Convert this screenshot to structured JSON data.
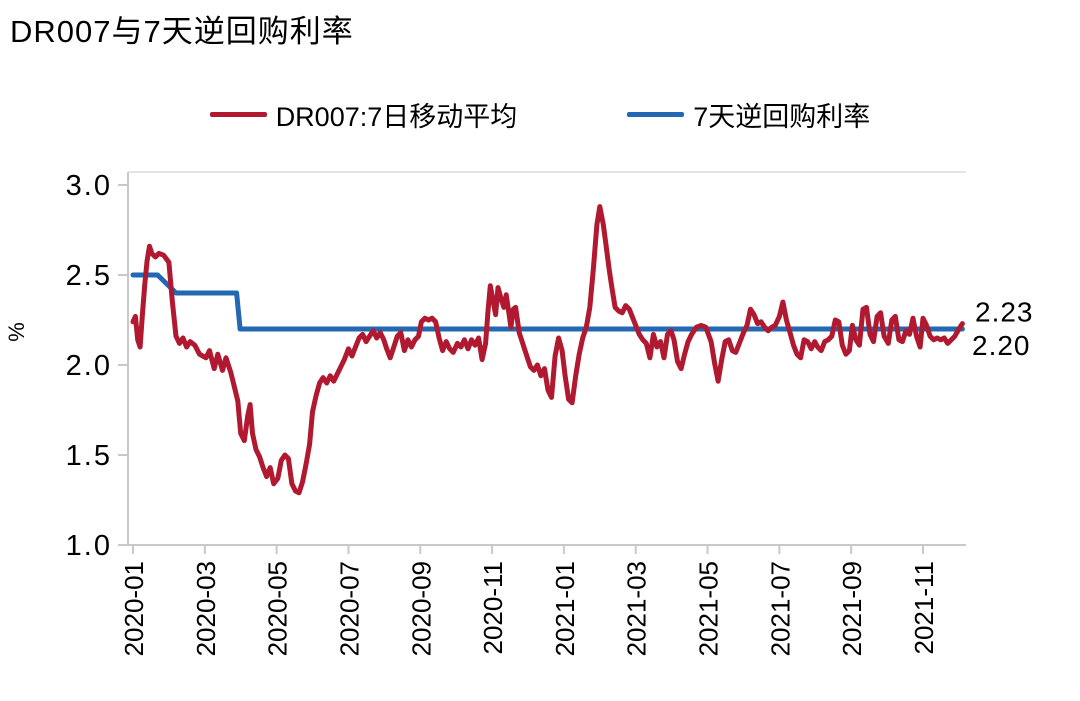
{
  "header": {
    "title": "DR007与7天逆回购利率"
  },
  "legend": {
    "items": [
      {
        "label": "DR007:7日移动平均",
        "color": "#b0192f"
      },
      {
        "label": "7天逆回购利率",
        "color": "#2268b2"
      }
    ]
  },
  "colors": {
    "red": "#b0192f",
    "blue": "#2268b2",
    "axis": "#c9c9c9",
    "text": "#000000"
  },
  "chart_data": {
    "type": "line",
    "title": "DR007与7天逆回购利率",
    "xlabel": "",
    "ylabel": "%",
    "ylim": [
      1.0,
      3.0
    ],
    "yticks": [
      "3.0",
      "2.5",
      "2.0",
      "1.5",
      "1.0"
    ],
    "xticks": [
      "2020-01",
      "2020-03",
      "2020-05",
      "2020-07",
      "2020-09",
      "2020-11",
      "2021-01",
      "2021-03",
      "2021-05",
      "2021-07",
      "2021-09",
      "2021-11"
    ],
    "grid": false,
    "legend_position": "top",
    "end_labels": [
      {
        "text": "2.23",
        "series": "DR007:7日移动平均",
        "color": "#000000"
      },
      {
        "text": "2.20",
        "series": "7天逆回购利率",
        "color": "#000000"
      }
    ],
    "series": [
      {
        "name": "7天逆回购利率",
        "color": "#2268b2",
        "points": [
          [
            "2020-01-01",
            2.5
          ],
          [
            "2020-01-22",
            2.5
          ],
          [
            "2020-02-07",
            2.4
          ],
          [
            "2020-03-28",
            2.4
          ],
          [
            "2020-03-31",
            2.2
          ],
          [
            "2021-12-04",
            2.2
          ]
        ]
      },
      {
        "name": "DR007:7日移动平均",
        "color": "#b0192f",
        "points": [
          [
            "2020-01-01",
            2.24
          ],
          [
            "2020-01-03",
            2.27
          ],
          [
            "2020-01-05",
            2.14
          ],
          [
            "2020-01-07",
            2.1
          ],
          [
            "2020-01-09",
            2.28
          ],
          [
            "2020-01-11",
            2.45
          ],
          [
            "2020-01-13",
            2.58
          ],
          [
            "2020-01-15",
            2.66
          ],
          [
            "2020-01-17",
            2.62
          ],
          [
            "2020-01-20",
            2.6
          ],
          [
            "2020-01-23",
            2.62
          ],
          [
            "2020-01-27",
            2.61
          ],
          [
            "2020-02-01",
            2.57
          ],
          [
            "2020-02-04",
            2.35
          ],
          [
            "2020-02-07",
            2.16
          ],
          [
            "2020-02-10",
            2.12
          ],
          [
            "2020-02-13",
            2.15
          ],
          [
            "2020-02-16",
            2.1
          ],
          [
            "2020-02-19",
            2.13
          ],
          [
            "2020-02-23",
            2.11
          ],
          [
            "2020-02-27",
            2.06
          ],
          [
            "2020-03-02",
            2.04
          ],
          [
            "2020-03-05",
            2.08
          ],
          [
            "2020-03-09",
            1.98
          ],
          [
            "2020-03-12",
            2.06
          ],
          [
            "2020-03-16",
            1.97
          ],
          [
            "2020-03-19",
            2.04
          ],
          [
            "2020-03-23",
            1.96
          ],
          [
            "2020-03-26",
            1.88
          ],
          [
            "2020-03-29",
            1.8
          ],
          [
            "2020-04-01",
            1.62
          ],
          [
            "2020-04-04",
            1.58
          ],
          [
            "2020-04-07",
            1.72
          ],
          [
            "2020-04-09",
            1.78
          ],
          [
            "2020-04-11",
            1.62
          ],
          [
            "2020-04-14",
            1.53
          ],
          [
            "2020-04-17",
            1.49
          ],
          [
            "2020-04-20",
            1.43
          ],
          [
            "2020-04-23",
            1.38
          ],
          [
            "2020-04-26",
            1.43
          ],
          [
            "2020-04-29",
            1.34
          ],
          [
            "2020-05-02",
            1.37
          ],
          [
            "2020-05-05",
            1.47
          ],
          [
            "2020-05-08",
            1.5
          ],
          [
            "2020-05-11",
            1.48
          ],
          [
            "2020-05-14",
            1.34
          ],
          [
            "2020-05-17",
            1.3
          ],
          [
            "2020-05-20",
            1.29
          ],
          [
            "2020-05-23",
            1.35
          ],
          [
            "2020-05-26",
            1.45
          ],
          [
            "2020-05-29",
            1.56
          ],
          [
            "2020-06-01",
            1.74
          ],
          [
            "2020-06-04",
            1.83
          ],
          [
            "2020-06-07",
            1.9
          ],
          [
            "2020-06-10",
            1.93
          ],
          [
            "2020-06-13",
            1.9
          ],
          [
            "2020-06-16",
            1.94
          ],
          [
            "2020-06-19",
            1.91
          ],
          [
            "2020-06-22",
            1.95
          ],
          [
            "2020-06-25",
            1.99
          ],
          [
            "2020-06-28",
            2.03
          ],
          [
            "2020-07-01",
            2.09
          ],
          [
            "2020-07-04",
            2.05
          ],
          [
            "2020-07-07",
            2.1
          ],
          [
            "2020-07-10",
            2.15
          ],
          [
            "2020-07-13",
            2.17
          ],
          [
            "2020-07-16",
            2.13
          ],
          [
            "2020-07-19",
            2.16
          ],
          [
            "2020-07-22",
            2.19
          ],
          [
            "2020-07-25",
            2.15
          ],
          [
            "2020-07-28",
            2.18
          ],
          [
            "2020-07-31",
            2.14
          ],
          [
            "2020-08-03",
            2.09
          ],
          [
            "2020-08-06",
            2.04
          ],
          [
            "2020-08-09",
            2.1
          ],
          [
            "2020-08-12",
            2.16
          ],
          [
            "2020-08-15",
            2.18
          ],
          [
            "2020-08-18",
            2.08
          ],
          [
            "2020-08-21",
            2.14
          ],
          [
            "2020-08-24",
            2.1
          ],
          [
            "2020-08-27",
            2.14
          ],
          [
            "2020-08-30",
            2.16
          ],
          [
            "2020-09-02",
            2.24
          ],
          [
            "2020-09-05",
            2.26
          ],
          [
            "2020-09-08",
            2.25
          ],
          [
            "2020-09-11",
            2.26
          ],
          [
            "2020-09-14",
            2.24
          ],
          [
            "2020-09-17",
            2.15
          ],
          [
            "2020-09-20",
            2.08
          ],
          [
            "2020-09-23",
            2.13
          ],
          [
            "2020-09-26",
            2.09
          ],
          [
            "2020-09-29",
            2.07
          ],
          [
            "2020-10-02",
            2.12
          ],
          [
            "2020-10-05",
            2.1
          ],
          [
            "2020-10-08",
            2.14
          ],
          [
            "2020-10-11",
            2.09
          ],
          [
            "2020-10-14",
            2.14
          ],
          [
            "2020-10-17",
            2.11
          ],
          [
            "2020-10-20",
            2.15
          ],
          [
            "2020-10-23",
            2.03
          ],
          [
            "2020-10-26",
            2.12
          ],
          [
            "2020-10-28",
            2.3
          ],
          [
            "2020-10-30",
            2.44
          ],
          [
            "2020-11-02",
            2.35
          ],
          [
            "2020-11-04",
            2.28
          ],
          [
            "2020-11-06",
            2.43
          ],
          [
            "2020-11-09",
            2.36
          ],
          [
            "2020-11-11",
            2.32
          ],
          [
            "2020-11-13",
            2.39
          ],
          [
            "2020-11-15",
            2.3
          ],
          [
            "2020-11-17",
            2.21
          ],
          [
            "2020-11-19",
            2.31
          ],
          [
            "2020-11-21",
            2.32
          ],
          [
            "2020-11-24",
            2.18
          ],
          [
            "2020-11-27",
            2.12
          ],
          [
            "2020-11-30",
            2.06
          ],
          [
            "2020-12-03",
            1.99
          ],
          [
            "2020-12-06",
            1.97
          ],
          [
            "2020-12-09",
            2.0
          ],
          [
            "2020-12-12",
            1.94
          ],
          [
            "2020-12-15",
            1.98
          ],
          [
            "2020-12-18",
            1.86
          ],
          [
            "2020-12-21",
            1.82
          ],
          [
            "2020-12-24",
            2.05
          ],
          [
            "2020-12-27",
            2.15
          ],
          [
            "2020-12-30",
            2.08
          ],
          [
            "2021-01-02",
            1.94
          ],
          [
            "2021-01-05",
            1.81
          ],
          [
            "2021-01-08",
            1.79
          ],
          [
            "2021-01-11",
            1.94
          ],
          [
            "2021-01-14",
            2.06
          ],
          [
            "2021-01-17",
            2.15
          ],
          [
            "2021-01-20",
            2.21
          ],
          [
            "2021-01-23",
            2.32
          ],
          [
            "2021-01-26",
            2.53
          ],
          [
            "2021-01-29",
            2.78
          ],
          [
            "2021-02-01",
            2.88
          ],
          [
            "2021-02-04",
            2.78
          ],
          [
            "2021-02-06",
            2.68
          ],
          [
            "2021-02-09",
            2.53
          ],
          [
            "2021-02-11",
            2.44
          ],
          [
            "2021-02-14",
            2.32
          ],
          [
            "2021-02-17",
            2.3
          ],
          [
            "2021-02-20",
            2.29
          ],
          [
            "2021-02-23",
            2.33
          ],
          [
            "2021-02-26",
            2.31
          ],
          [
            "2021-03-01",
            2.22
          ],
          [
            "2021-03-04",
            2.17
          ],
          [
            "2021-03-07",
            2.14
          ],
          [
            "2021-03-10",
            2.12
          ],
          [
            "2021-03-13",
            2.04
          ],
          [
            "2021-03-16",
            2.17
          ],
          [
            "2021-03-19",
            2.1
          ],
          [
            "2021-03-22",
            2.13
          ],
          [
            "2021-03-25",
            2.04
          ],
          [
            "2021-03-28",
            2.17
          ],
          [
            "2021-03-31",
            2.19
          ],
          [
            "2021-04-03",
            2.14
          ],
          [
            "2021-04-06",
            2.02
          ],
          [
            "2021-04-09",
            1.98
          ],
          [
            "2021-04-12",
            2.06
          ],
          [
            "2021-04-15",
            2.13
          ],
          [
            "2021-04-18",
            2.17
          ],
          [
            "2021-04-22",
            2.21
          ],
          [
            "2021-04-26",
            2.22
          ],
          [
            "2021-04-30",
            2.21
          ],
          [
            "2021-05-04",
            2.13
          ],
          [
            "2021-05-07",
            2.01
          ],
          [
            "2021-05-10",
            1.91
          ],
          [
            "2021-05-13",
            2.03
          ],
          [
            "2021-05-16",
            2.13
          ],
          [
            "2021-05-19",
            2.14
          ],
          [
            "2021-05-22",
            2.08
          ],
          [
            "2021-05-25",
            2.07
          ],
          [
            "2021-05-28",
            2.12
          ],
          [
            "2021-06-01",
            2.18
          ],
          [
            "2021-06-04",
            2.22
          ],
          [
            "2021-06-07",
            2.31
          ],
          [
            "2021-06-10",
            2.28
          ],
          [
            "2021-06-13",
            2.23
          ],
          [
            "2021-06-16",
            2.24
          ],
          [
            "2021-06-19",
            2.21
          ],
          [
            "2021-06-22",
            2.19
          ],
          [
            "2021-06-25",
            2.21
          ],
          [
            "2021-06-28",
            2.22
          ],
          [
            "2021-07-01",
            2.27
          ],
          [
            "2021-07-04",
            2.35
          ],
          [
            "2021-07-07",
            2.25
          ],
          [
            "2021-07-10",
            2.18
          ],
          [
            "2021-07-13",
            2.11
          ],
          [
            "2021-07-16",
            2.06
          ],
          [
            "2021-07-19",
            2.04
          ],
          [
            "2021-07-22",
            2.14
          ],
          [
            "2021-07-25",
            2.13
          ],
          [
            "2021-07-28",
            2.09
          ],
          [
            "2021-07-31",
            2.13
          ],
          [
            "2021-08-03",
            2.1
          ],
          [
            "2021-08-06",
            2.08
          ],
          [
            "2021-08-09",
            2.13
          ],
          [
            "2021-08-12",
            2.14
          ],
          [
            "2021-08-15",
            2.16
          ],
          [
            "2021-08-18",
            2.25
          ],
          [
            "2021-08-21",
            2.24
          ],
          [
            "2021-08-24",
            2.11
          ],
          [
            "2021-08-27",
            2.06
          ],
          [
            "2021-08-30",
            2.08
          ],
          [
            "2021-09-02",
            2.22
          ],
          [
            "2021-09-05",
            2.14
          ],
          [
            "2021-09-08",
            2.11
          ],
          [
            "2021-09-11",
            2.31
          ],
          [
            "2021-09-14",
            2.32
          ],
          [
            "2021-09-17",
            2.17
          ],
          [
            "2021-09-20",
            2.13
          ],
          [
            "2021-09-23",
            2.27
          ],
          [
            "2021-09-26",
            2.29
          ],
          [
            "2021-09-29",
            2.16
          ],
          [
            "2021-10-02",
            2.12
          ],
          [
            "2021-10-05",
            2.25
          ],
          [
            "2021-10-08",
            2.27
          ],
          [
            "2021-10-11",
            2.14
          ],
          [
            "2021-10-14",
            2.13
          ],
          [
            "2021-10-17",
            2.19
          ],
          [
            "2021-10-20",
            2.17
          ],
          [
            "2021-10-23",
            2.26
          ],
          [
            "2021-10-26",
            2.16
          ],
          [
            "2021-10-29",
            2.1
          ],
          [
            "2021-11-01",
            2.26
          ],
          [
            "2021-11-04",
            2.22
          ],
          [
            "2021-11-07",
            2.16
          ],
          [
            "2021-11-10",
            2.14
          ],
          [
            "2021-11-13",
            2.15
          ],
          [
            "2021-11-16",
            2.14
          ],
          [
            "2021-11-19",
            2.15
          ],
          [
            "2021-11-22",
            2.12
          ],
          [
            "2021-11-25",
            2.14
          ],
          [
            "2021-11-28",
            2.16
          ],
          [
            "2021-12-01",
            2.2
          ],
          [
            "2021-12-04",
            2.23
          ]
        ]
      }
    ]
  }
}
